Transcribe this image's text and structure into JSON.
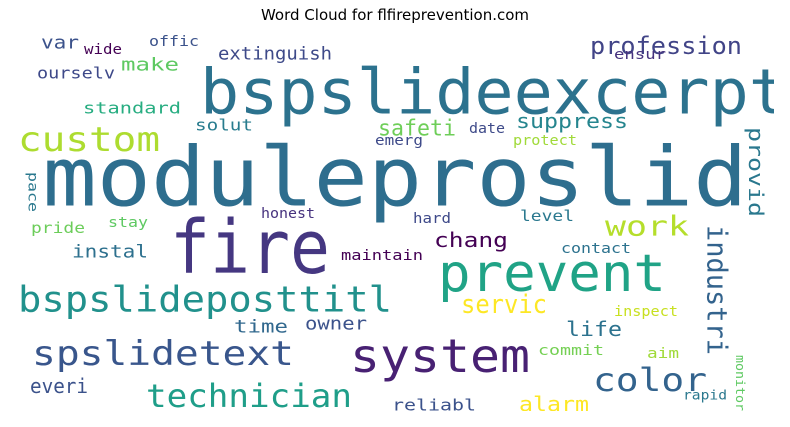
{
  "chart_data": {
    "type": "wordcloud",
    "title": "Word Cloud for flfireprevention.com",
    "words": [
      {
        "text": "moduleproslid",
        "color": "#2e6e8e"
      },
      {
        "text": "bspslideexcerpt",
        "color": "#2c728e"
      },
      {
        "text": "fire",
        "color": "#453781"
      },
      {
        "text": "prevent",
        "color": "#20a386"
      },
      {
        "text": "system",
        "color": "#482173"
      },
      {
        "text": "bspslideposttitl",
        "color": "#21918c"
      },
      {
        "text": "custom",
        "color": "#addc30"
      },
      {
        "text": "spslidetext",
        "color": "#39568c"
      },
      {
        "text": "technician",
        "color": "#1f9e89"
      },
      {
        "text": "color",
        "color": "#33638d"
      },
      {
        "text": "industri",
        "color": "#33638d"
      },
      {
        "text": "profession",
        "color": "#414487"
      },
      {
        "text": "work",
        "color": "#b5de2b"
      },
      {
        "text": "servic",
        "color": "#fde725"
      },
      {
        "text": "safeti",
        "color": "#6ece58"
      },
      {
        "text": "suppress",
        "color": "#25858e"
      },
      {
        "text": "chang",
        "color": "#440154"
      },
      {
        "text": "life",
        "color": "#2c728e"
      },
      {
        "text": "alarm",
        "color": "#fde725"
      },
      {
        "text": "everi",
        "color": "#3b528b"
      },
      {
        "text": "provid",
        "color": "#2a788e"
      },
      {
        "text": "make",
        "color": "#5ec962"
      },
      {
        "text": "extinguish",
        "color": "#3e4a89"
      },
      {
        "text": "instal",
        "color": "#2d708e"
      },
      {
        "text": "owner",
        "color": "#3b528b"
      },
      {
        "text": "time",
        "color": "#31688e"
      },
      {
        "text": "var",
        "color": "#3b528b"
      },
      {
        "text": "ourselv",
        "color": "#3e4989"
      },
      {
        "text": "standard",
        "color": "#27ad81"
      },
      {
        "text": "solut",
        "color": "#287c8e"
      },
      {
        "text": "reliabl",
        "color": "#3b528b"
      },
      {
        "text": "ensur",
        "color": "#46337e"
      },
      {
        "text": "offic",
        "color": "#3b528b"
      },
      {
        "text": "wide",
        "color": "#440154"
      },
      {
        "text": "date",
        "color": "#3e4a89"
      },
      {
        "text": "emerg",
        "color": "#3e4a89"
      },
      {
        "text": "protect",
        "color": "#a0da39"
      },
      {
        "text": "pace",
        "color": "#2a788e"
      },
      {
        "text": "pride",
        "color": "#6ccd5a"
      },
      {
        "text": "stay",
        "color": "#5ec962"
      },
      {
        "text": "honest",
        "color": "#46327e"
      },
      {
        "text": "hard",
        "color": "#3e4989"
      },
      {
        "text": "level",
        "color": "#2a788e"
      },
      {
        "text": "maintain",
        "color": "#440154"
      },
      {
        "text": "contact",
        "color": "#2c728e"
      },
      {
        "text": "inspect",
        "color": "#c8e020"
      },
      {
        "text": "commit",
        "color": "#75d054"
      },
      {
        "text": "aim",
        "color": "#a0da39"
      },
      {
        "text": "monitor",
        "color": "#5ec962"
      },
      {
        "text": "rapid",
        "color": "#2a788e"
      }
    ]
  }
}
